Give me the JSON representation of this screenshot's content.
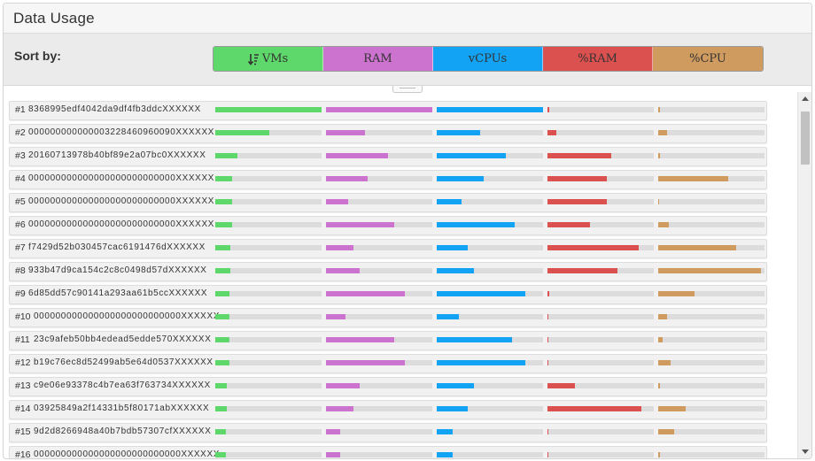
{
  "panel": {
    "title": "Data Usage"
  },
  "sort": {
    "label": "Sort by:",
    "buttons": [
      {
        "label": "VMs",
        "color": "#5ed86a",
        "icon": "sort-descending-icon",
        "active": true
      },
      {
        "label": "RAM",
        "color": "#cc72cf",
        "icon": "",
        "active": false
      },
      {
        "label": "vCPUs",
        "color": "#12a3f4",
        "icon": "",
        "active": false
      },
      {
        "label": "%RAM",
        "color": "#db514f",
        "icon": "",
        "active": false
      },
      {
        "label": "%CPU",
        "color": "#cf9b5f",
        "icon": "",
        "active": false
      }
    ]
  },
  "bar_colors": {
    "vms": "#5ed86a",
    "ram": "#cc72cf",
    "vcpus": "#12a3f4",
    "pct_ram": "#db514f",
    "pct_cpu": "#cf9b5f"
  },
  "rows": [
    {
      "index": "#1",
      "id": "8368995edf4042da9df4fb3ddcXXXXXX",
      "vms": 1.0,
      "ram": 1.0,
      "vcpus": 1.0,
      "pct_ram": 0.02,
      "pct_cpu": 0.02
    },
    {
      "index": "#2",
      "id": "000000000000003228460960090XXXXXX",
      "vms": 0.51,
      "ram": 0.37,
      "vcpus": 0.41,
      "pct_ram": 0.08,
      "pct_cpu": 0.08
    },
    {
      "index": "#3",
      "id": "20160713978b40bf89e2a07bc0XXXXXX",
      "vms": 0.21,
      "ram": 0.58,
      "vcpus": 0.65,
      "pct_ram": 0.6,
      "pct_cpu": 0.02
    },
    {
      "index": "#4",
      "id": "000000000000000000000000000XXXXXX",
      "vms": 0.16,
      "ram": 0.39,
      "vcpus": 0.44,
      "pct_ram": 0.56,
      "pct_cpu": 0.66
    },
    {
      "index": "#5",
      "id": "000000000000000000000000000XXXXXX",
      "vms": 0.16,
      "ram": 0.21,
      "vcpus": 0.23,
      "pct_ram": 0.56,
      "pct_cpu": 0.01
    },
    {
      "index": "#6",
      "id": "000000000000000000000000000XXXXXX",
      "vms": 0.16,
      "ram": 0.64,
      "vcpus": 0.73,
      "pct_ram": 0.4,
      "pct_cpu": 0.1
    },
    {
      "index": "#7",
      "id": "f7429d52b030457cac6191476dXXXXXX",
      "vms": 0.14,
      "ram": 0.26,
      "vcpus": 0.29,
      "pct_ram": 0.86,
      "pct_cpu": 0.73
    },
    {
      "index": "#8",
      "id": "933b47d9ca154c2c8c0498d57dXXXXXX",
      "vms": 0.14,
      "ram": 0.32,
      "vcpus": 0.35,
      "pct_ram": 0.66,
      "pct_cpu": 0.97
    },
    {
      "index": "#9",
      "id": "6d85dd57c90141a293aa61b5ccXXXXXX",
      "vms": 0.13,
      "ram": 0.74,
      "vcpus": 0.83,
      "pct_ram": 0.02,
      "pct_cpu": 0.34
    },
    {
      "index": "#10",
      "id": "000000000000000000000000000XXXXXX",
      "vms": 0.13,
      "ram": 0.18,
      "vcpus": 0.21,
      "pct_ram": 0.01,
      "pct_cpu": 0.08
    },
    {
      "index": "#11",
      "id": "23c9afeb50bb4edead5edde570XXXXXX",
      "vms": 0.13,
      "ram": 0.64,
      "vcpus": 0.71,
      "pct_ram": 0.01,
      "pct_cpu": 0.04
    },
    {
      "index": "#12",
      "id": "b19c76ec8d52499ab5e64d0537XXXXXX",
      "vms": 0.13,
      "ram": 0.74,
      "vcpus": 0.83,
      "pct_ram": 0.01,
      "pct_cpu": 0.12
    },
    {
      "index": "#13",
      "id": "c9e06e93378c4b7ea63f763734XXXXXX",
      "vms": 0.11,
      "ram": 0.32,
      "vcpus": 0.35,
      "pct_ram": 0.26,
      "pct_cpu": 0.02
    },
    {
      "index": "#14",
      "id": "03925849a2f14331b5f80171abXXXXXX",
      "vms": 0.11,
      "ram": 0.26,
      "vcpus": 0.29,
      "pct_ram": 0.88,
      "pct_cpu": 0.26
    },
    {
      "index": "#15",
      "id": "9d2d8266948a40b7bdb57307cfXXXXXX",
      "vms": 0.1,
      "ram": 0.13,
      "vcpus": 0.15,
      "pct_ram": 0.01,
      "pct_cpu": 0.15
    },
    {
      "index": "#16",
      "id": "000000000000000000000000000XXXXXX",
      "vms": 0.1,
      "ram": 0.13,
      "vcpus": 0.15,
      "pct_ram": 0.01,
      "pct_cpu": 0.02
    }
  ]
}
